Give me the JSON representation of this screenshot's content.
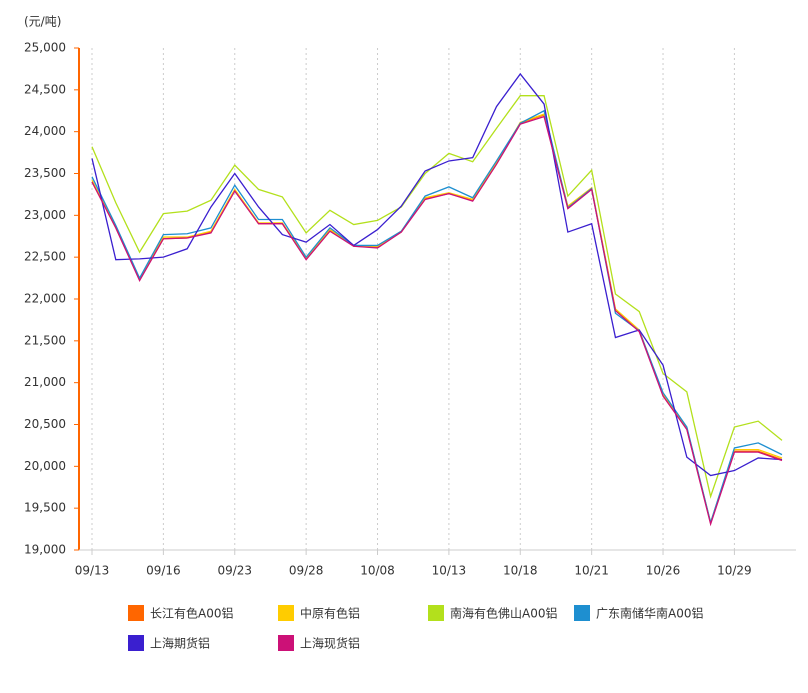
{
  "chart_data": {
    "type": "line",
    "y_unit": "(元/吨)",
    "categories": [
      "09/13",
      null,
      null,
      "09/16",
      null,
      null,
      "09/23",
      null,
      null,
      "09/28",
      null,
      null,
      "10/08",
      null,
      null,
      "10/13",
      null,
      null,
      "10/18",
      null,
      null,
      "10/21",
      null,
      null,
      "10/26",
      null,
      null,
      "10/29",
      null,
      null
    ],
    "series": [
      {
        "name": "长江有色A00铝",
        "color": "#ff6600",
        "values": [
          23400,
          22850,
          22230,
          22720,
          22730,
          22800,
          23300,
          22900,
          22900,
          22480,
          22820,
          22630,
          22620,
          22800,
          23200,
          23260,
          23180,
          23620,
          24100,
          24200,
          23100,
          23320,
          21870,
          21620,
          20850,
          20450,
          19320,
          20180,
          20180,
          20080
        ]
      },
      {
        "name": "中原有色铝",
        "color": "#ffcc00",
        "values": [
          23420,
          22860,
          22240,
          22740,
          22740,
          22810,
          23310,
          22910,
          22910,
          22490,
          22830,
          22640,
          22630,
          22810,
          23210,
          23270,
          23190,
          23630,
          24110,
          24210,
          23110,
          23330,
          21880,
          21630,
          20860,
          20460,
          19330,
          20200,
          20200,
          20100
        ]
      },
      {
        "name": "南海有色佛山A00铝",
        "color": "#b3e01c",
        "values": [
          23820,
          23150,
          22560,
          23020,
          23050,
          23180,
          23600,
          23310,
          23220,
          22790,
          23060,
          22890,
          22940,
          23100,
          23500,
          23740,
          23640,
          24040,
          24430,
          24430,
          23230,
          23540,
          22060,
          21850,
          21110,
          20890,
          19640,
          20470,
          20540,
          20310
        ]
      },
      {
        "name": "广东南储华南A00铝",
        "color": "#1e8fd0",
        "values": [
          23460,
          22880,
          22250,
          22770,
          22780,
          22850,
          23360,
          22950,
          22950,
          22500,
          22850,
          22640,
          22640,
          22810,
          23230,
          23340,
          23210,
          23650,
          24100,
          24250,
          23090,
          23320,
          21830,
          21620,
          20880,
          20470,
          19330,
          20220,
          20280,
          20140
        ]
      },
      {
        "name": "上海期货铝",
        "color": "#3a1fcf",
        "values": [
          23680,
          22470,
          22480,
          22500,
          22600,
          23100,
          23500,
          23100,
          22770,
          22680,
          22890,
          22640,
          22830,
          23110,
          23530,
          23650,
          23690,
          24300,
          24690,
          24330,
          22800,
          22900,
          21540,
          21630,
          21210,
          20110,
          19890,
          19950,
          20100,
          20080
        ]
      },
      {
        "name": "上海现货铝",
        "color": "#cc1177",
        "values": [
          23400,
          22850,
          22220,
          22720,
          22730,
          22790,
          23290,
          22900,
          22900,
          22470,
          22810,
          22630,
          22610,
          22800,
          23190,
          23260,
          23170,
          23610,
          24090,
          24180,
          23080,
          23310,
          21860,
          21610,
          20840,
          20440,
          19310,
          20170,
          20170,
          20070
        ]
      }
    ],
    "ylim": [
      19000,
      25000
    ],
    "yticks": [
      {
        "value": 19000,
        "label": "19,000"
      },
      {
        "value": 19500,
        "label": "19,500"
      },
      {
        "value": 20000,
        "label": "20,000"
      },
      {
        "value": 20500,
        "label": "20,500"
      },
      {
        "value": 21000,
        "label": "21,000"
      },
      {
        "value": 21500,
        "label": "21,500"
      },
      {
        "value": 22000,
        "label": "22,000"
      },
      {
        "value": 22500,
        "label": "22,500"
      },
      {
        "value": 23000,
        "label": "23,000"
      },
      {
        "value": 23500,
        "label": "23,500"
      },
      {
        "value": 24000,
        "label": "24,000"
      },
      {
        "value": 24500,
        "label": "24,500"
      },
      {
        "value": 25000,
        "label": "25,000"
      }
    ],
    "grid": true
  }
}
